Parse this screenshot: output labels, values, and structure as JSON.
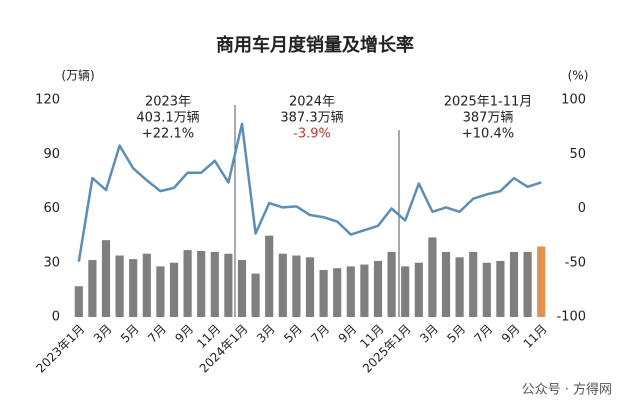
{
  "chart_data": {
    "type": "bar-line",
    "title": "商用车月度销量及增长率",
    "y_label": "(万辆)",
    "y2_label": "(%)",
    "categories": [
      "2023年1月",
      null,
      "3月",
      null,
      "5月",
      null,
      "7月",
      null,
      "9月",
      null,
      "11月",
      null,
      "2024年1月",
      null,
      "3月",
      null,
      "5月",
      null,
      "7月",
      null,
      "9月",
      null,
      "11月",
      null,
      "2025年1月",
      null,
      "3月",
      null,
      "5月",
      null,
      "7月",
      null,
      "9月",
      null,
      "11月"
    ],
    "series": [
      {
        "type": "bar",
        "color": "#7f7f7f",
        "colors": [
          "#7f7f7f",
          "#7f7f7f",
          "#7f7f7f",
          "#7f7f7f",
          "#7f7f7f",
          "#7f7f7f",
          "#7f7f7f",
          "#7f7f7f",
          "#7f7f7f",
          "#7f7f7f",
          "#7f7f7f",
          "#7f7f7f",
          "#7f7f7f",
          "#7f7f7f",
          "#7f7f7f",
          "#7f7f7f",
          "#7f7f7f",
          "#7f7f7f",
          "#7f7f7f",
          "#7f7f7f",
          "#7f7f7f",
          "#7f7f7f",
          "#7f7f7f",
          "#7f7f7f",
          "#7f7f7f",
          "#7f7f7f",
          "#7f7f7f",
          "#7f7f7f",
          "#7f7f7f",
          "#7f7f7f",
          "#7f7f7f",
          "#7f7f7f",
          "#7f7f7f",
          "#7f7f7f",
          "#e0924e"
        ],
        "values": [
          17,
          31.5,
          42.5,
          34,
          32,
          35,
          28,
          30,
          37,
          36.5,
          36,
          35,
          31.5,
          24,
          45,
          35,
          34,
          33,
          26,
          27,
          28,
          29,
          31,
          36,
          28,
          30,
          44,
          36,
          33,
          36,
          30,
          31,
          36,
          36,
          39
        ]
      },
      {
        "type": "line",
        "axis": "y2",
        "color": "#5b8db8",
        "values": [
          -49,
          28,
          17,
          58,
          37,
          26,
          16,
          19,
          33,
          33,
          44,
          24,
          78,
          -23,
          5,
          1,
          2,
          -6,
          -8,
          -12,
          -24,
          -20,
          -16,
          0,
          -11,
          23,
          -3,
          1,
          -3,
          9,
          13,
          16,
          28,
          20,
          24
        ]
      }
    ],
    "ylim": [
      0,
      120
    ],
    "yticks": [
      0,
      30,
      60,
      90,
      120
    ],
    "y2lim": [
      -100,
      100
    ],
    "y2ticks": [
      -100,
      -50,
      0,
      50,
      100
    ],
    "grid": false,
    "annotations": [
      {
        "lines": [
          "2023年",
          "403.1万辆",
          "+22.1%"
        ],
        "colors": [
          "#222222",
          "#222222",
          "#222222"
        ]
      },
      {
        "lines": [
          "2024年",
          "387.3万辆",
          "-3.9%"
        ],
        "colors": [
          "#222222",
          "#222222",
          "#c0392b"
        ]
      },
      {
        "lines": [
          "2025年1-11月",
          "387万辆",
          "+10.4%"
        ],
        "colors": [
          "#222222",
          "#222222",
          "#222222"
        ]
      }
    ],
    "footer": "公众号 · 方得网"
  }
}
